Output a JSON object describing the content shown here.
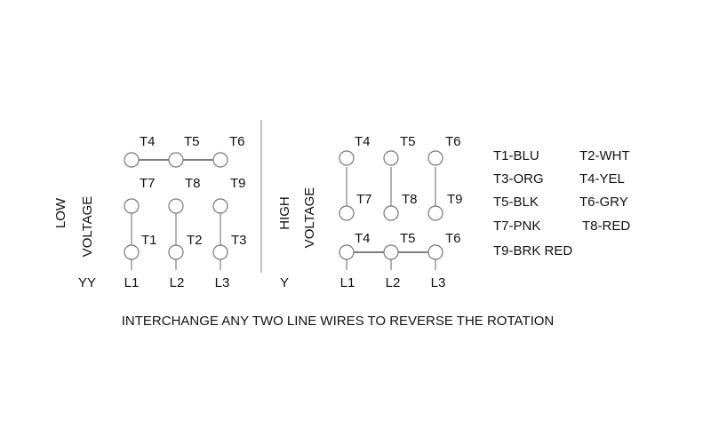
{
  "low": {
    "title1": "LOW",
    "title2": "VOLTAGE",
    "connection": "YY",
    "top_row": [
      "T4",
      "T5",
      "T6"
    ],
    "mid_row": [
      "T7",
      "T8",
      "T9"
    ],
    "bottom_row": [
      "T1",
      "T2",
      "T3"
    ],
    "lines": [
      "L1",
      "L2",
      "L3"
    ]
  },
  "high": {
    "title1": "HIGH",
    "title2": "VOLTAGE",
    "connection": "Y",
    "top_row": [
      "T4",
      "T5",
      "T6"
    ],
    "mid_row": [
      "T7",
      "T8",
      "T9"
    ],
    "bottom_row": [
      "T4",
      "T5",
      "T6"
    ],
    "lines": [
      "L1",
      "L2",
      "L3"
    ]
  },
  "legend": [
    "T1-BLU",
    "T2-WHT",
    "T3-ORG",
    "T4-YEL",
    "T5-BLK",
    "T6-GRY",
    "T7-PNK",
    "T8-RED",
    "T9-BRK RED"
  ],
  "note": "INTERCHANGE ANY TWO LINE WIRES TO REVERSE THE ROTATION"
}
